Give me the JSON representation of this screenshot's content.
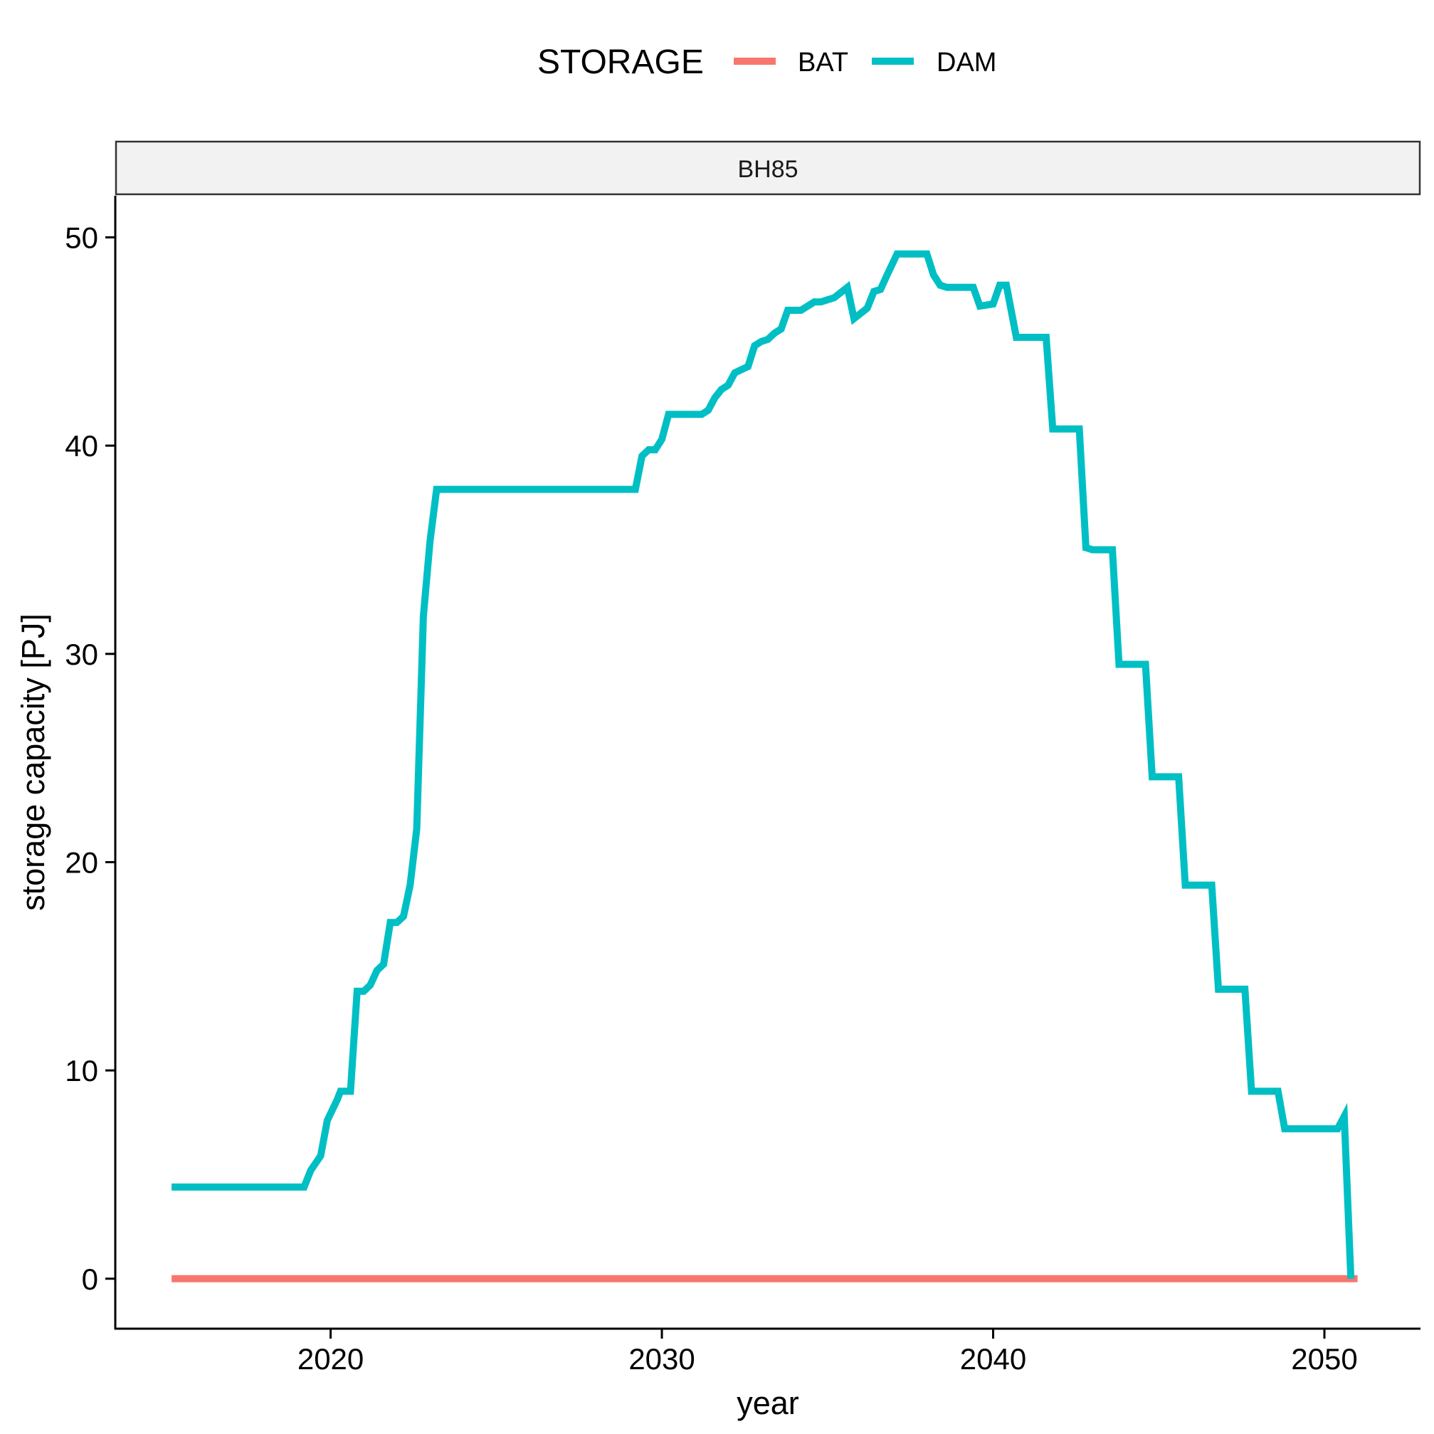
{
  "chart_data": {
    "type": "line",
    "facet_label": "BH85",
    "xlabel": "year",
    "ylabel": "storage capacity [PJ]",
    "xlim": [
      2013.5,
      2052.9
    ],
    "ylim": [
      -2.4,
      52.0
    ],
    "x_ticks": [
      2020,
      2030,
      2040,
      2050
    ],
    "y_ticks": [
      0,
      10,
      20,
      30,
      40,
      50
    ],
    "grid": false,
    "legend": {
      "title": "STORAGE",
      "position": "top",
      "entries": [
        "BAT",
        "DAM"
      ]
    },
    "series": [
      {
        "name": "BAT",
        "color": "#F8766D",
        "points": [
          [
            2015.2,
            0
          ],
          [
            2051.0,
            0
          ]
        ]
      },
      {
        "name": "DAM",
        "color": "#00BFC4",
        "points": [
          [
            2015.2,
            4.4
          ],
          [
            2019.2,
            4.4
          ],
          [
            2019.4,
            5.2
          ],
          [
            2019.7,
            5.9
          ],
          [
            2019.9,
            7.6
          ],
          [
            2020.2,
            8.6
          ],
          [
            2020.3,
            9.0
          ],
          [
            2020.6,
            9.0
          ],
          [
            2020.8,
            13.8
          ],
          [
            2021.0,
            13.8
          ],
          [
            2021.2,
            14.1
          ],
          [
            2021.4,
            14.8
          ],
          [
            2021.6,
            15.1
          ],
          [
            2021.8,
            17.1
          ],
          [
            2022.0,
            17.1
          ],
          [
            2022.2,
            17.4
          ],
          [
            2022.4,
            18.9
          ],
          [
            2022.6,
            21.6
          ],
          [
            2022.8,
            31.8
          ],
          [
            2023.0,
            35.4
          ],
          [
            2023.2,
            37.9
          ],
          [
            2029.2,
            37.9
          ],
          [
            2029.4,
            39.5
          ],
          [
            2029.6,
            39.8
          ],
          [
            2029.8,
            39.8
          ],
          [
            2030.0,
            40.3
          ],
          [
            2030.2,
            41.5
          ],
          [
            2031.2,
            41.5
          ],
          [
            2031.4,
            41.7
          ],
          [
            2031.6,
            42.3
          ],
          [
            2031.8,
            42.7
          ],
          [
            2032.0,
            42.9
          ],
          [
            2032.2,
            43.5
          ],
          [
            2032.6,
            43.8
          ],
          [
            2032.8,
            44.8
          ],
          [
            2033.0,
            45.0
          ],
          [
            2033.2,
            45.1
          ],
          [
            2033.4,
            45.4
          ],
          [
            2033.6,
            45.6
          ],
          [
            2033.8,
            46.5
          ],
          [
            2034.2,
            46.5
          ],
          [
            2034.6,
            46.9
          ],
          [
            2034.8,
            46.9
          ],
          [
            2035.0,
            47.0
          ],
          [
            2035.2,
            47.1
          ],
          [
            2035.6,
            47.6
          ],
          [
            2035.8,
            46.1
          ],
          [
            2036.2,
            46.6
          ],
          [
            2036.4,
            47.4
          ],
          [
            2036.6,
            47.5
          ],
          [
            2036.8,
            48.2
          ],
          [
            2037.1,
            49.2
          ],
          [
            2038.0,
            49.2
          ],
          [
            2038.2,
            48.2
          ],
          [
            2038.4,
            47.7
          ],
          [
            2038.6,
            47.6
          ],
          [
            2039.4,
            47.6
          ],
          [
            2039.6,
            46.7
          ],
          [
            2040.0,
            46.8
          ],
          [
            2040.2,
            47.7
          ],
          [
            2040.4,
            47.7
          ],
          [
            2040.7,
            45.2
          ],
          [
            2041.6,
            45.2
          ],
          [
            2041.8,
            40.8
          ],
          [
            2042.6,
            40.8
          ],
          [
            2042.8,
            35.1
          ],
          [
            2043.0,
            35.0
          ],
          [
            2043.6,
            35.0
          ],
          [
            2043.8,
            29.5
          ],
          [
            2044.6,
            29.5
          ],
          [
            2044.8,
            24.1
          ],
          [
            2045.6,
            24.1
          ],
          [
            2045.8,
            18.9
          ],
          [
            2046.6,
            18.9
          ],
          [
            2046.8,
            13.9
          ],
          [
            2047.6,
            13.9
          ],
          [
            2047.8,
            9.0
          ],
          [
            2048.6,
            9.0
          ],
          [
            2048.8,
            7.2
          ],
          [
            2050.4,
            7.2
          ],
          [
            2050.6,
            7.8
          ],
          [
            2050.8,
            0
          ]
        ]
      }
    ]
  }
}
